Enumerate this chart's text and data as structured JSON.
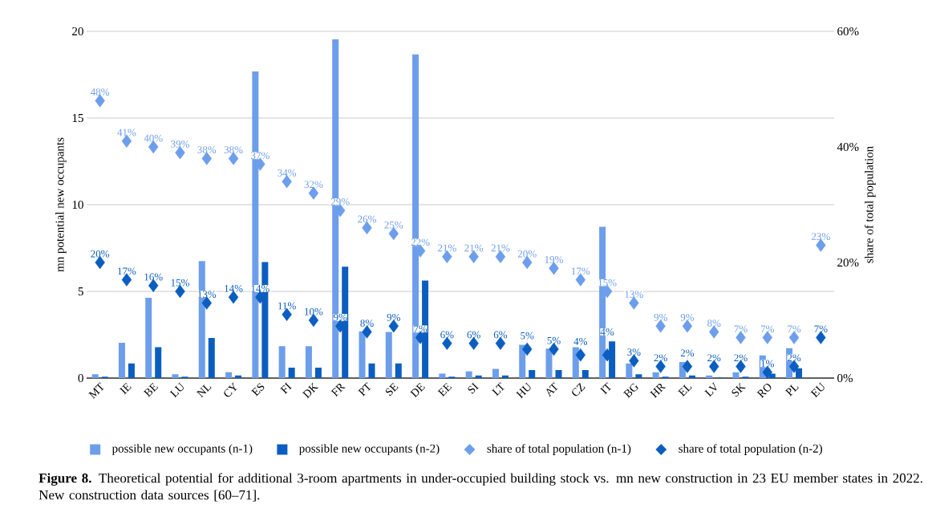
{
  "chart_data": {
    "type": "bar",
    "categories": [
      "MT",
      "IE",
      "BE",
      "LU",
      "NL",
      "CY",
      "ES",
      "FI",
      "DK",
      "FR",
      "PT",
      "SE",
      "DE",
      "EE",
      "SI",
      "LT",
      "HU",
      "AT",
      "CZ",
      "IT",
      "BG",
      "HR",
      "EL",
      "LV",
      "SK",
      "RO",
      "PL",
      "EU"
    ],
    "ylabel": "mn potential new occupants",
    "y2label": "share of total population",
    "ylim": [
      0,
      20
    ],
    "yticks": [
      0,
      5,
      10,
      15,
      20
    ],
    "y2lim": [
      0,
      60
    ],
    "y2ticks": [
      {
        "value": 0,
        "label": "0%"
      },
      {
        "value": 20,
        "label": "20%"
      },
      {
        "value": 40,
        "label": "40%"
      },
      {
        "value": 60,
        "label": "60%"
      }
    ],
    "grid": "y",
    "legend": "bottom",
    "annotations": [
      "**Figure 8.** Theoretical potential for additional 3-room apartments in under-occupied building stock vs. mn new construction in 23 EU member states in 2022. New construction data sources [60–71]."
    ],
    "series": [
      {
        "name": "possible new occupants (n-1)",
        "color": "#6d9eeb",
        "values": [
          0.22,
          2.04,
          4.63,
          0.22,
          6.75,
          0.34,
          17.68,
          1.84,
          1.84,
          19.54,
          2.69,
          2.66,
          18.67,
          0.26,
          0.39,
          0.53,
          1.92,
          1.7,
          1.78,
          8.73,
          0.85,
          0.34,
          0.93,
          0.15,
          0.34,
          1.31,
          1.73,
          null
        ]
      },
      {
        "name": "possible new occupants (n-2)",
        "color": "#0b5ebf",
        "values": [
          0.08,
          0.85,
          1.78,
          0.08,
          2.32,
          0.15,
          6.7,
          0.6,
          0.6,
          6.42,
          0.85,
          0.85,
          5.62,
          0.08,
          0.15,
          0.15,
          0.46,
          0.46,
          0.46,
          2.12,
          0.22,
          0.08,
          0.15,
          0.03,
          0.08,
          0.26,
          0.57,
          null
        ]
      },
      {
        "name": "share of total population (n-1)",
        "type": "scatter",
        "axis": "y2",
        "marker": "diamond",
        "color": "#6d9eeb",
        "values": [
          48,
          41,
          40,
          39,
          38,
          38,
          37,
          34,
          32,
          29,
          26,
          25,
          22,
          21,
          21,
          21,
          20,
          19,
          17,
          15,
          13,
          9,
          9,
          8,
          7,
          7,
          7,
          23
        ],
        "value_labels": [
          "48%",
          "41%",
          "40%",
          "39%",
          "38%",
          "38%",
          "37%",
          "34%",
          "32%",
          "29%",
          "26%",
          "25%",
          "22%",
          "21%",
          "21%",
          "21%",
          "20%",
          "19%",
          "17%",
          "15%",
          "13%",
          "9%",
          "9%",
          "8%",
          "7%",
          "7%",
          "7%",
          "23%"
        ]
      },
      {
        "name": "share of total population (n-2)",
        "type": "scatter",
        "axis": "y2",
        "marker": "diamond",
        "color": "#0b5ebf",
        "values": [
          20,
          17,
          16,
          15,
          13,
          14,
          14,
          11,
          10,
          9,
          8,
          9,
          7,
          6,
          6,
          6,
          5,
          5,
          4,
          4,
          3,
          2,
          2,
          2,
          2,
          1,
          2,
          7
        ],
        "value_labels": [
          "20%",
          "17%",
          "16%",
          "15%",
          "13%",
          "14%",
          "14%",
          "11%",
          "10%",
          "9%",
          "8%",
          "9%",
          "7%",
          "6%",
          "6%",
          "6%",
          "5%",
          "5%",
          "4%",
          "4%",
          "3%",
          "2%",
          "2%",
          "2%",
          "2%",
          "1%",
          "2%",
          "7%"
        ]
      }
    ]
  }
}
